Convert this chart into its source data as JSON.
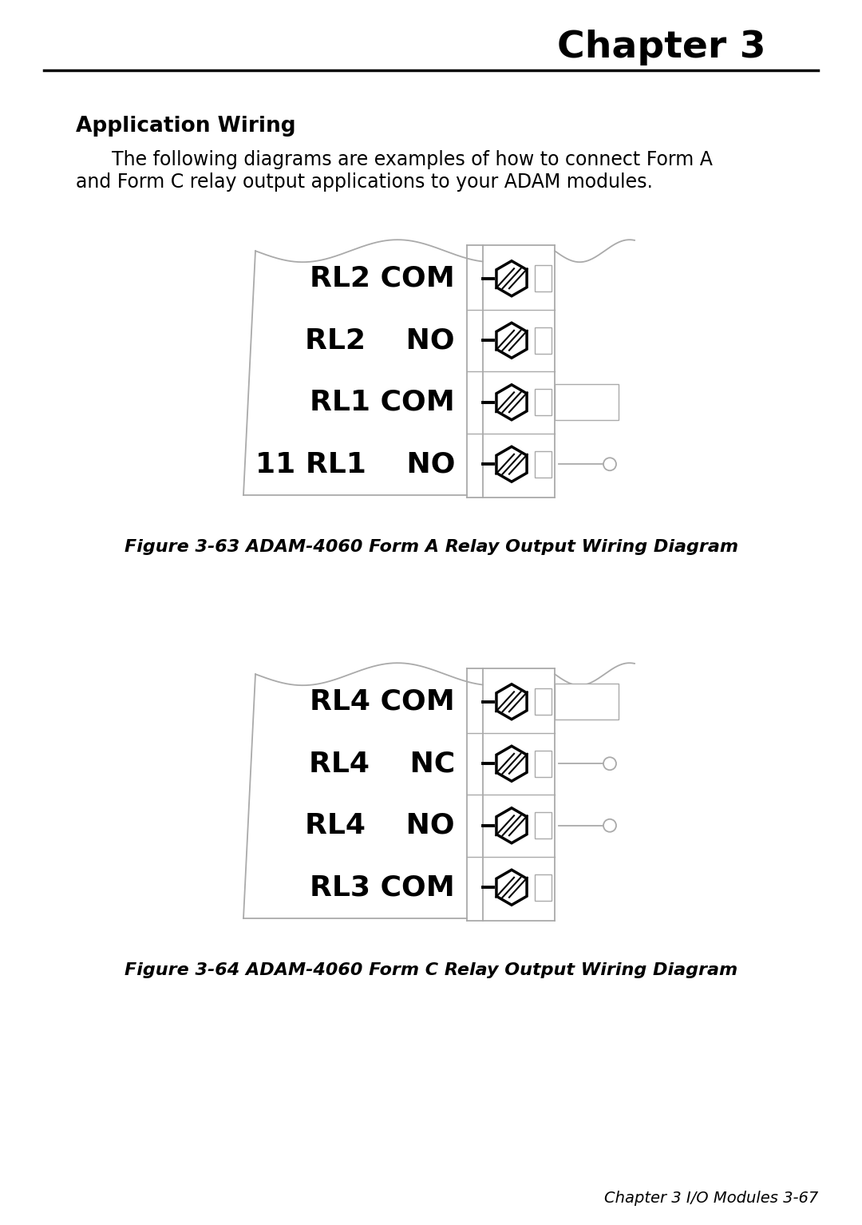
{
  "bg_color": "#ffffff",
  "title_text": "Chapter 3",
  "section_title": "Application Wiring",
  "body_line1": "    The following diagrams are examples of how to connect Form A",
  "body_line2": "and Form C relay output applications to your ADAM modules.",
  "fig1_caption": "Figure 3-63 ADAM-4060 Form A Relay Output Wiring Diagram",
  "fig2_caption": "Figure 3-64 ADAM-4060 Form C Relay Output Wiring Diagram",
  "footer_text": "Chapter 3 I/O Modules 3-67",
  "diagram1_labels": [
    "RL2 COM",
    "RL2    NO",
    "RL1 COM",
    "RL1    NO"
  ],
  "diagram1_prefix": [
    "",
    "",
    "",
    "11"
  ],
  "diagram2_labels": [
    "RL4 COM",
    "RL4    NC",
    "RL4    NO",
    "RL3 COM"
  ],
  "line_color": "#aaaaaa",
  "text_color": "#000000"
}
